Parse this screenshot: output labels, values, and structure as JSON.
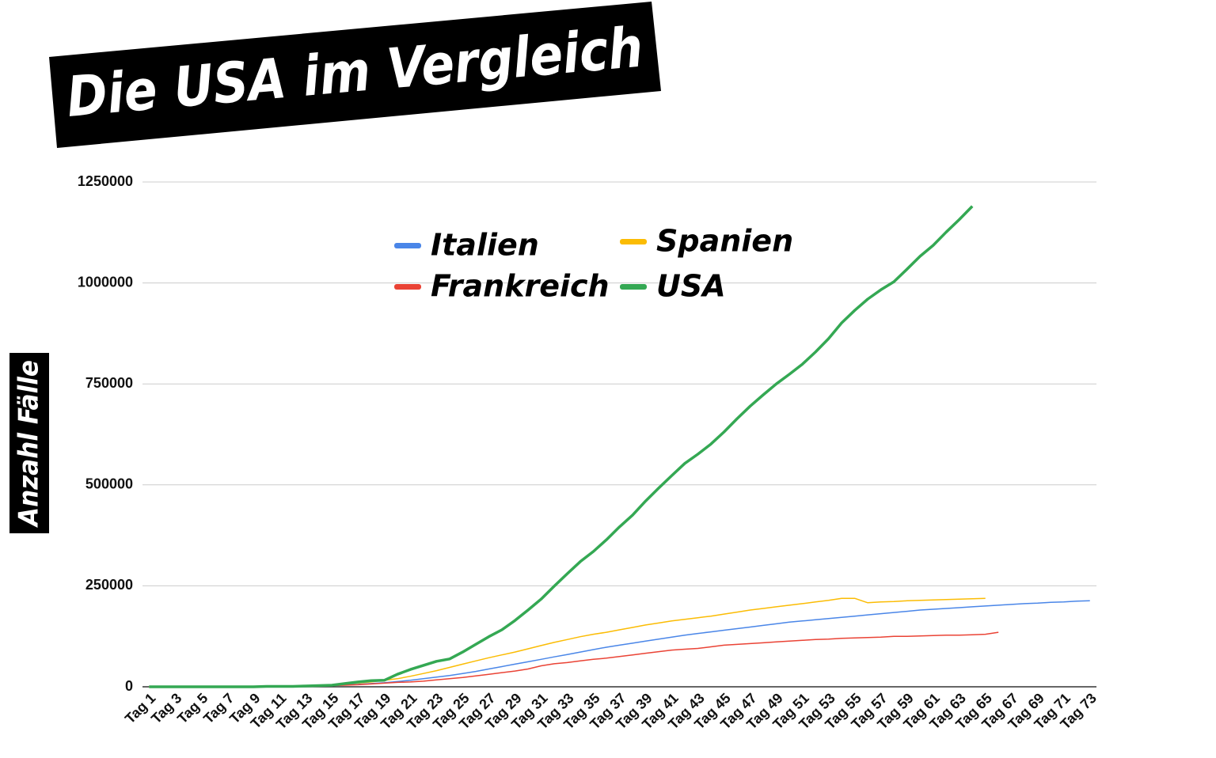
{
  "chart_data": {
    "type": "line",
    "title": "Die USA im Vergleich",
    "y_label": "Anzahl Fälle",
    "categories": [
      "Tag 1",
      null,
      "Tag 3",
      null,
      "Tag 5",
      null,
      "Tag 7",
      null,
      "Tag 9",
      null,
      "Tag 11",
      null,
      "Tag 13",
      null,
      "Tag 15",
      null,
      "Tag 17",
      null,
      "Tag 19",
      null,
      "Tag 21",
      null,
      "Tag 23",
      null,
      "Tag 25",
      null,
      "Tag 27",
      null,
      "Tag 29",
      null,
      "Tag 31",
      null,
      "Tag 33",
      null,
      "Tag 35",
      null,
      "Tag 37",
      null,
      "Tag 39",
      null,
      "Tag 41",
      null,
      "Tag 43",
      null,
      "Tag 45",
      null,
      "Tag 47",
      null,
      "Tag 49",
      null,
      "Tag 51",
      null,
      "Tag 53",
      null,
      "Tag 55",
      null,
      "Tag 57",
      null,
      "Tag 59",
      null,
      "Tag 61",
      null,
      "Tag 63",
      null,
      "Tag 65",
      null,
      "Tag 67",
      null,
      "Tag 69",
      null,
      "Tag 71",
      null,
      "Tag 73"
    ],
    "series": [
      {
        "name": "Italien",
        "color": "#4a86e8",
        "width": 1.5,
        "values": [
          0,
          0,
          0,
          0,
          0,
          0,
          0,
          1000,
          1000,
          1000,
          2000,
          2000,
          3000,
          3000,
          4000,
          5000,
          6000,
          8000,
          10000,
          13000,
          16000,
          20000,
          24000,
          28000,
          33000,
          38000,
          44000,
          50000,
          56000,
          62000,
          68000,
          74000,
          80000,
          86000,
          92000,
          98000,
          103000,
          108000,
          113000,
          118000,
          123000,
          128000,
          132000,
          136000,
          140000,
          144000,
          148000,
          152000,
          156000,
          160000,
          163000,
          166000,
          169000,
          172000,
          175000,
          178000,
          181000,
          184000,
          187000,
          190000,
          192000,
          194000,
          196000,
          198000,
          200000,
          202000,
          204000,
          206000,
          207000,
          209000,
          210000,
          212000,
          213000
        ]
      },
      {
        "name": "Frankreich",
        "color": "#ea4335",
        "width": 1.5,
        "values": [
          0,
          0,
          0,
          0,
          0,
          0,
          0,
          0,
          0,
          0,
          0,
          1000,
          1000,
          2000,
          3000,
          4000,
          5000,
          7000,
          9000,
          11000,
          12000,
          14000,
          17000,
          20000,
          23000,
          27000,
          31000,
          35000,
          39000,
          44000,
          52000,
          57000,
          60000,
          64000,
          68000,
          71000,
          75000,
          79000,
          83000,
          87000,
          91000,
          93000,
          95000,
          99000,
          103000,
          105000,
          107000,
          109000,
          111000,
          113000,
          115000,
          117000,
          118000,
          120000,
          121000,
          122000,
          123000,
          125000,
          125000,
          126000,
          127000,
          128000,
          128000,
          129000,
          130000,
          135000,
          null,
          null,
          null,
          null,
          null,
          null,
          null
        ]
      },
      {
        "name": "Spanien",
        "color": "#fbbc04",
        "width": 1.5,
        "values": [
          0,
          0,
          0,
          0,
          0,
          0,
          0,
          0,
          0,
          0,
          1000,
          1000,
          2000,
          3000,
          5000,
          7000,
          9000,
          12000,
          16000,
          20000,
          26000,
          33000,
          40000,
          48000,
          56000,
          64000,
          72000,
          79000,
          86000,
          94000,
          102000,
          110000,
          117000,
          124000,
          130000,
          135000,
          141000,
          147000,
          153000,
          158000,
          163000,
          167000,
          171000,
          175000,
          180000,
          185000,
          190000,
          194000,
          198000,
          202000,
          206000,
          210000,
          214000,
          219000,
          219000,
          208000,
          210000,
          211000,
          213000,
          214000,
          215000,
          216000,
          217000,
          218000,
          219000,
          null,
          null,
          null,
          null,
          null,
          null,
          null,
          null
        ]
      },
      {
        "name": "USA",
        "color": "#34a853",
        "width": 3.5,
        "values": [
          0,
          0,
          0,
          0,
          0,
          0,
          0,
          0,
          0,
          1000,
          1000,
          1000,
          2000,
          3000,
          4000,
          8000,
          12000,
          15000,
          16000,
          31000,
          43000,
          53000,
          63000,
          69000,
          86000,
          105000,
          124000,
          141000,
          164000,
          190000,
          217000,
          249000,
          280000,
          310000,
          335000,
          364000,
          396000,
          425000,
          460000,
          492000,
          523000,
          553000,
          576000,
          601000,
          631000,
          664000,
          695000,
          723000,
          750000,
          774000,
          799000,
          829000,
          862000,
          901000,
          932000,
          960000,
          983000,
          1003000,
          1034000,
          1066000,
          1093000,
          1126000,
          1157000,
          1190000,
          null,
          null,
          null,
          null,
          null,
          null,
          null,
          null,
          null
        ]
      }
    ],
    "ylim": [
      0,
      1250000
    ],
    "yticks": [
      0,
      250000,
      500000,
      750000,
      1000000,
      1250000
    ],
    "grid": true
  }
}
